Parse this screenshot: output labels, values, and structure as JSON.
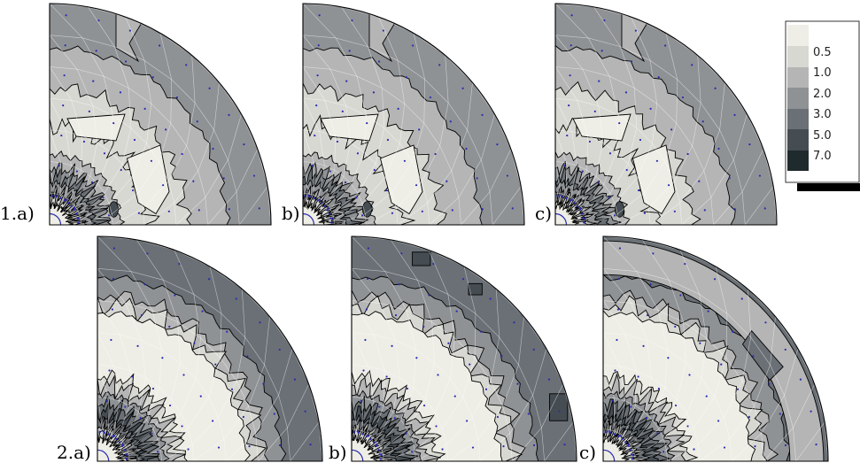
{
  "colorbar": {
    "ticks": [
      "0.5",
      "1.0",
      "2.0",
      "3.0",
      "5.0",
      "7.0"
    ],
    "levels": [
      {
        "name": "band-0",
        "color": "#eeeee6"
      },
      {
        "name": "band-1",
        "color": "#d8d8d3"
      },
      {
        "name": "band-2",
        "color": "#b4b5b4"
      },
      {
        "name": "band-3",
        "color": "#8f9295"
      },
      {
        "name": "band-4",
        "color": "#6a7075"
      },
      {
        "name": "band-5",
        "color": "#454d53"
      },
      {
        "name": "band-6",
        "color": "#1f2a2c"
      }
    ]
  },
  "panels": [
    {
      "label": "1.a)",
      "row": 1,
      "variant": "a",
      "highlights": []
    },
    {
      "label": "b)",
      "row": 1,
      "variant": "b",
      "highlights": []
    },
    {
      "label": "c)",
      "row": 1,
      "variant": "c",
      "highlights": []
    },
    {
      "label": "2.a)",
      "row": 2,
      "variant": "a",
      "highlights": []
    },
    {
      "label": "b)",
      "row": 2,
      "variant": "b",
      "highlights": [
        "dark-patches"
      ]
    },
    {
      "label": "c)",
      "row": 2,
      "variant": "c",
      "highlights": [
        "irregular-outer-ring"
      ]
    }
  ],
  "colors": {
    "mesh_line": "#ffffff",
    "node_dot": "#2b2bb0",
    "contour_line": "#000000"
  }
}
